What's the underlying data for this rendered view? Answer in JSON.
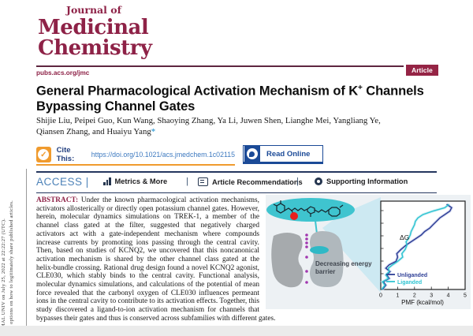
{
  "watermark": {
    "line1": "ORMAL UNIV on July 25, 2022 at 22:22:27 (UTC).",
    "line2": "s for options on how to legitimately share published articles."
  },
  "masthead": {
    "journal_prefix": "Journal of",
    "journal_name_line1": "Medicinal",
    "journal_name_line2": "Chemistry",
    "site_url": "pubs.acs.org/jmc",
    "badge": "Article",
    "brand_color": "#8e2247"
  },
  "title": {
    "line1_pre": "General Pharmacological Activation Mechanism of K",
    "line1_sup": "+",
    "line1_post": " Channels",
    "line2": "Bypassing Channel Gates"
  },
  "authors": {
    "line1": "Shijie Liu, Peipei Guo, Kun Wang, Shaoying Zhang, Ya Li, Juwen Shen, Lianghe Mei, Yangliang Ye,",
    "line2": "Qiansen Zhang, and Huaiyu Yang",
    "corresponding_mark": "*"
  },
  "cite_bar": {
    "cite_label": "Cite This:",
    "doi_url": "https://doi.org/10.1021/acs.jmedchem.1c02115",
    "read_online_label": "Read Online",
    "accent_orange": "#f09b2e",
    "accent_blue": "#1b4a97"
  },
  "access_bar": {
    "access_label": "ACCESS",
    "access_bar_char": "|",
    "metrics_label": "Metrics & More",
    "recommendations_label": "Article Recommendations",
    "supporting_label": "Supporting Information",
    "separator": "|"
  },
  "abstract": {
    "label": "ABSTRACT:",
    "text": "Under the known pharmacological activation mechanisms, activators allosterically or directly open potassium channel gates. However, herein, molecular dynamics simulations on TREK-1, a member of the channel class gated at the filter, suggested that negatively charged activators act with a gate-independent mechanism where compounds increase currents by promoting ions passing through the central cavity. Then, based on studies of KCNQ2, we uncovered that this noncanonical activation mechanism is shared by the other channel class gated at the helix-bundle crossing. Rational drug design found a novel KCNQ2 agonist, CLE030, which stably binds to the central cavity. Functional analysis, molecular dynamics simulations, and calculations of the potential of mean force revealed that the carbonyl oxygen of CLE030 influences permeant ions in the central cavity to contribute to its activation effects. Together, this study discovered a ligand-to-ion activation mechanism for channels that bypasses their gates and thus is conserved across subfamilies with different gates."
  },
  "figure": {
    "annotation_line1": "Decreasing energy",
    "annotation_line2": "barrier",
    "ligand_color": "#3fc4cf",
    "carbonyl_oxygen_color": "#e8201d",
    "ion_color": "#a238b0",
    "channel_color": "#a6aaad"
  },
  "chart_data": {
    "type": "line",
    "title": "",
    "xlabel": "PMF (kcal/mol)",
    "ylabel": "",
    "xlim": [
      0,
      5
    ],
    "xticks": [
      0,
      1,
      2,
      3,
      4,
      5
    ],
    "grid": false,
    "legend_position": "bottom-right",
    "annotation": "ΔG",
    "note": "Potential-of-mean-force profiles along the channel axis; PMF on x-axis, vertical axis is ion permeation coordinate (bottom to top). Liganded curve shows a lowered energy barrier (ΔG) versus unliganded.",
    "series": [
      {
        "name": "Unliganded",
        "color": "#2e3f96",
        "halo": "#c9cfec",
        "points": [
          [
            0.1,
            0.0
          ],
          [
            0.3,
            0.05
          ],
          [
            0.15,
            0.09
          ],
          [
            0.5,
            0.13
          ],
          [
            0.35,
            0.17
          ],
          [
            0.55,
            0.21
          ],
          [
            0.3,
            0.25
          ],
          [
            0.5,
            0.29
          ],
          [
            0.9,
            0.33
          ],
          [
            1.0,
            0.38
          ],
          [
            0.95,
            0.42
          ],
          [
            1.2,
            0.47
          ],
          [
            1.5,
            0.52
          ],
          [
            1.8,
            0.56
          ],
          [
            2.1,
            0.6
          ],
          [
            2.4,
            0.64
          ],
          [
            2.6,
            0.68
          ],
          [
            2.9,
            0.72
          ],
          [
            3.1,
            0.76
          ],
          [
            3.3,
            0.8
          ],
          [
            3.5,
            0.84
          ],
          [
            3.8,
            0.88
          ],
          [
            4.1,
            0.92
          ],
          [
            4.2,
            0.96
          ],
          [
            3.9,
            1.0
          ]
        ]
      },
      {
        "name": "Liganded",
        "color": "#2fc4d2",
        "halo": "#c8ecf2",
        "points": [
          [
            0.05,
            0.0
          ],
          [
            0.25,
            0.05
          ],
          [
            0.1,
            0.09
          ],
          [
            0.45,
            0.13
          ],
          [
            0.3,
            0.17
          ],
          [
            0.5,
            0.21
          ],
          [
            0.45,
            0.25
          ],
          [
            0.7,
            0.29
          ],
          [
            1.0,
            0.33
          ],
          [
            1.3,
            0.38
          ],
          [
            1.25,
            0.42
          ],
          [
            1.45,
            0.47
          ],
          [
            1.55,
            0.52
          ],
          [
            1.5,
            0.56
          ],
          [
            1.65,
            0.6
          ],
          [
            1.75,
            0.64
          ],
          [
            1.8,
            0.68
          ],
          [
            1.9,
            0.72
          ],
          [
            2.0,
            0.76
          ],
          [
            2.05,
            0.8
          ],
          [
            2.2,
            0.84
          ],
          [
            2.5,
            0.88
          ],
          [
            3.1,
            0.92
          ],
          [
            3.8,
            0.96
          ],
          [
            4.05,
            1.0
          ]
        ]
      }
    ]
  }
}
